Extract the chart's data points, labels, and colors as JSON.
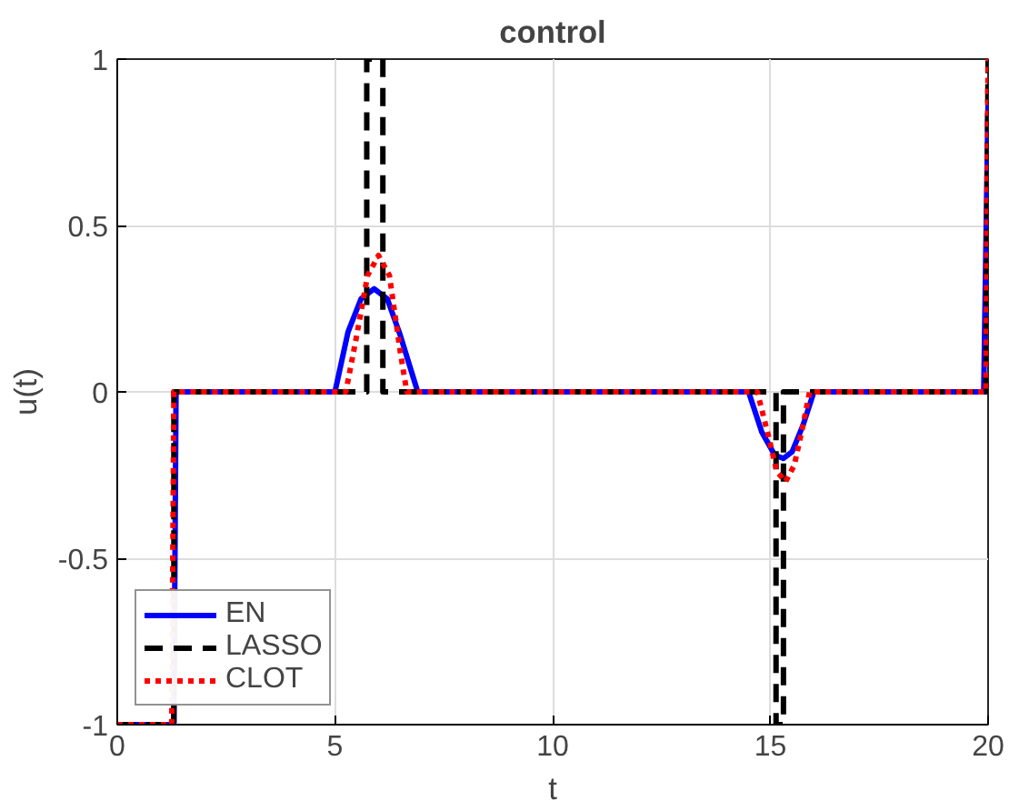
{
  "chart_data": {
    "type": "line",
    "title": "control",
    "xlabel": "t",
    "ylabel": "u(t)",
    "xlim": [
      0,
      20
    ],
    "ylim": [
      -1,
      1
    ],
    "xticks": [
      0,
      5,
      10,
      15,
      20
    ],
    "yticks": [
      -1,
      -0.5,
      0,
      0.5,
      1
    ],
    "grid": true,
    "legend": "bottom left",
    "series": [
      {
        "name": "EN",
        "color": "#0000ff",
        "line_style": "solid",
        "x": [
          0,
          1.3,
          1.35,
          5.0,
          5.3,
          5.6,
          5.9,
          6.2,
          6.5,
          6.9,
          14.5,
          14.8,
          15.1,
          15.3,
          15.5,
          15.75,
          16.0,
          19.9,
          20
        ],
        "values": [
          -1,
          -1,
          0,
          0,
          0.18,
          0.28,
          0.31,
          0.28,
          0.17,
          0,
          0,
          -0.12,
          -0.19,
          -0.2,
          -0.18,
          -0.1,
          0,
          0,
          0.88
        ]
      },
      {
        "name": "LASSO",
        "color": "#000000",
        "line_style": "dashed",
        "x": [
          0,
          1.3,
          1.3,
          5.73,
          5.73,
          6.1,
          6.1,
          15.13,
          15.13,
          15.3,
          15.3,
          19.95,
          20
        ],
        "values": [
          -1,
          -1,
          0,
          0,
          1,
          1,
          0,
          0,
          -1,
          -1,
          0,
          0,
          1
        ]
      },
      {
        "name": "CLOT",
        "color": "#ff0000",
        "line_style": "dotted",
        "x": [
          0,
          1.25,
          1.3,
          5.25,
          5.5,
          5.75,
          6.0,
          6.25,
          6.5,
          6.65,
          14.7,
          14.95,
          15.15,
          15.35,
          15.55,
          15.75,
          15.9,
          19.95,
          20
        ],
        "values": [
          -1,
          -1,
          0,
          0,
          0.17,
          0.35,
          0.41,
          0.35,
          0.12,
          0,
          0,
          -0.13,
          -0.24,
          -0.27,
          -0.22,
          -0.1,
          0,
          0,
          1
        ]
      }
    ]
  }
}
